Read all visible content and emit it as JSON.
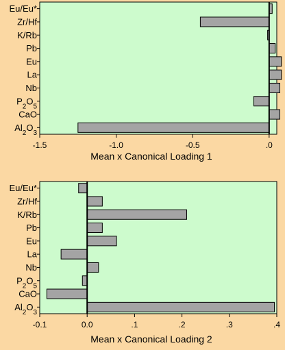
{
  "chart_data": [
    {
      "type": "bar",
      "orientation": "horizontal",
      "categories": [
        "Eu/Eu*",
        "Zr/Hf",
        "K/Rb",
        "Pb",
        "Eu",
        "La",
        "Nb",
        "P2O5",
        "CaO",
        "Al2O3"
      ],
      "values": [
        0.02,
        -0.45,
        -0.01,
        0.04,
        0.08,
        0.08,
        0.07,
        -0.1,
        0.07,
        -1.25
      ],
      "xlabel": "Mean x Canonical Loading 1",
      "xlim": [
        -1.5,
        0.05
      ],
      "xticks": [
        -1.5,
        -1.0,
        -0.5,
        0.0
      ],
      "xtick_labels": [
        "-1.5",
        "-1.0",
        "-0.5",
        ".0"
      ],
      "grid": false,
      "plot_background": "#cdfbcd",
      "bar_color": "#a4a4a4"
    },
    {
      "type": "bar",
      "orientation": "horizontal",
      "categories": [
        "Eu/Eu*",
        "Zr/Hf",
        "K/Rb",
        "Pb",
        "Eu",
        "La",
        "Nb",
        "P2O5",
        "CaO",
        "Al2O3"
      ],
      "values": [
        -0.018,
        0.032,
        0.21,
        0.032,
        0.062,
        -0.055,
        0.024,
        -0.01,
        -0.085,
        0.395
      ],
      "xlabel": "Mean x Canonical Loading 2",
      "xlim": [
        -0.1,
        0.4
      ],
      "xticks": [
        -0.1,
        0.0,
        0.1,
        0.2,
        0.3,
        0.4
      ],
      "xtick_labels": [
        "-0.1",
        "0.0",
        ".1",
        ".2",
        ".3",
        ".4"
      ],
      "grid": false,
      "plot_background": "#cdfbcd",
      "bar_color": "#a4a4a4"
    }
  ],
  "colors": {
    "page_background": "#fbd8a3",
    "plot_background": "#cdfbcd",
    "bar_fill": "#a4a4a4",
    "axis": "#000000"
  }
}
